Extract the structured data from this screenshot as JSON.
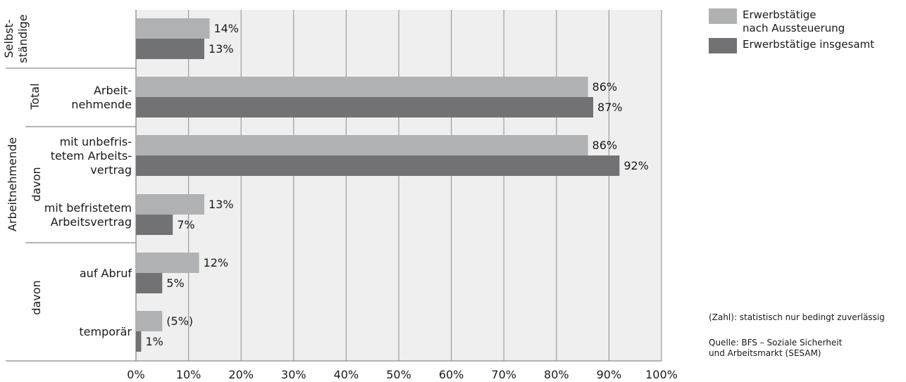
{
  "chart_data": {
    "type": "bar",
    "orientation": "horizontal",
    "xlim": [
      0,
      100
    ],
    "x_ticks": [
      "0%",
      "10%",
      "20%",
      "30%",
      "40%",
      "50%",
      "60%",
      "70%",
      "80%",
      "90%",
      "100%"
    ],
    "grid": true,
    "legend_position": "top-right",
    "categories": [
      "Selbst-\nständige",
      "Arbeit-\nnehmende",
      "mit unbefris-\ntetem Arbeits-\nvertrag",
      "mit befristetem\nArbeitsvertrag",
      "auf Abruf",
      "temporär"
    ],
    "series": [
      {
        "name": "Erwerbstätige\nnach Aussteuerung",
        "color": "#b0b1b3",
        "values": [
          14,
          86,
          86,
          13,
          12,
          5
        ],
        "labels": [
          "14%",
          "86%",
          "86%",
          "13%",
          "12%",
          "(5%)"
        ]
      },
      {
        "name": "Erwerbstätige insgesamt",
        "color": "#727275",
        "values": [
          13,
          87,
          92,
          7,
          5,
          1
        ],
        "labels": [
          "13%",
          "87%",
          "92%",
          "7%",
          "5%",
          "1%"
        ]
      }
    ],
    "group_labels": {
      "outer": "Arbeitnehmende",
      "total": "Total",
      "davon_1": "davon",
      "davon_2": "davon"
    }
  },
  "notes": {
    "reliability": "(Zahl): statistisch nur bedingt zuverlässig",
    "source": "Quelle: BFS – Soziale Sicherheit\nund Arbeitsmarkt (SESAM)"
  },
  "colors": {
    "plot_background": "#efefef",
    "grid": "#9d9d9d"
  }
}
